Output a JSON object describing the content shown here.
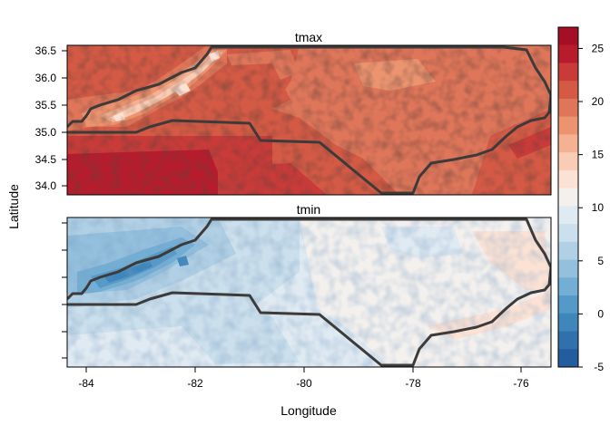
{
  "panels": [
    {
      "title": "tmax"
    },
    {
      "title": "tmin"
    }
  ],
  "axes": {
    "xlabel": "Longitude",
    "ylabel": "Latitude",
    "x_ticks": [
      "-84",
      "-82",
      "-80",
      "-78",
      "-76"
    ],
    "y_ticks_top": [
      "36.5",
      "36.0",
      "35.5",
      "35.0",
      "34.5",
      "34.0"
    ]
  },
  "colorbar": {
    "ticks": [
      "25",
      "20",
      "15",
      "10",
      "5",
      "0",
      "-5"
    ],
    "colors": [
      "#a50f26",
      "#b71c2d",
      "#c83b39",
      "#d45a45",
      "#df765a",
      "#eb946f",
      "#f5b293",
      "#f8ccb5",
      "#fbe2d5",
      "#f3f0ee",
      "#e0eaf2",
      "#cbdfec",
      "#b1d0e5",
      "#93c0dd",
      "#73aed4",
      "#5499c7",
      "#3f86bb",
      "#2f70ad",
      "#235c9f"
    ]
  },
  "chart_data": {
    "type": "heatmap",
    "title": "",
    "xlabel": "Longitude",
    "ylabel": "Latitude",
    "xlim": [
      -84.4,
      -75.5
    ],
    "ylim": [
      33.8,
      36.6
    ],
    "panels": [
      "tmax",
      "tmin"
    ],
    "color_range": [
      -5,
      27
    ],
    "color_breaks": [
      -5,
      -3.3,
      -1.7,
      0,
      1.7,
      3.3,
      5,
      6.7,
      8.3,
      10,
      11.7,
      13.3,
      15,
      16.7,
      18.3,
      20,
      21.7,
      23.3,
      25,
      27
    ],
    "approx_values": {
      "tmax": {
        "mountains": 12,
        "piedmont": 20,
        "coastal_plain": 21,
        "south_coast": 24
      },
      "tmin": {
        "mountains": 4,
        "piedmont": 8,
        "coastal_plain": 9,
        "outer_banks": 11
      }
    }
  }
}
